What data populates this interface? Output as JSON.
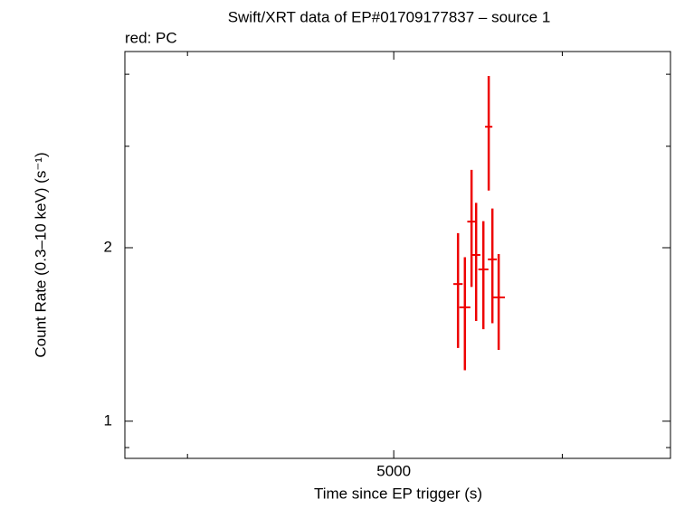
{
  "chart_data": {
    "type": "scatter",
    "title": "Swift/XRT data of EP#01709177837 – source 1",
    "subtitle": "red: PC",
    "x_label": "Time since EP trigger (s)",
    "y_label": "Count Rate (0.3–10 keV) (s⁻¹)",
    "x_log": true,
    "y_log": true,
    "xlim": [
      3738,
      6745
    ],
    "ylim": [
      0.862,
      4.38
    ],
    "xticks": [
      5000
    ],
    "xminor_ticks": [
      4000,
      6000
    ],
    "yticks": [
      1,
      2
    ],
    "yminor_ticks": [
      0.9,
      3,
      4
    ],
    "series": [
      {
        "name": "PC",
        "color": "#ee0000",
        "x": [
          5360,
          5400,
          5439,
          5466,
          5509,
          5541,
          5563,
          5601
        ],
        "xerr": [
          27,
          32,
          25,
          25,
          30,
          22,
          27,
          38
        ],
        "values": [
          1.73,
          1.576,
          2.22,
          1.943,
          1.834,
          3.243,
          1.909,
          1.64
        ],
        "yerr": [
          0.39,
          0.35,
          0.51,
          0.45,
          0.39,
          0.73,
          0.43,
          0.31
        ]
      }
    ]
  }
}
